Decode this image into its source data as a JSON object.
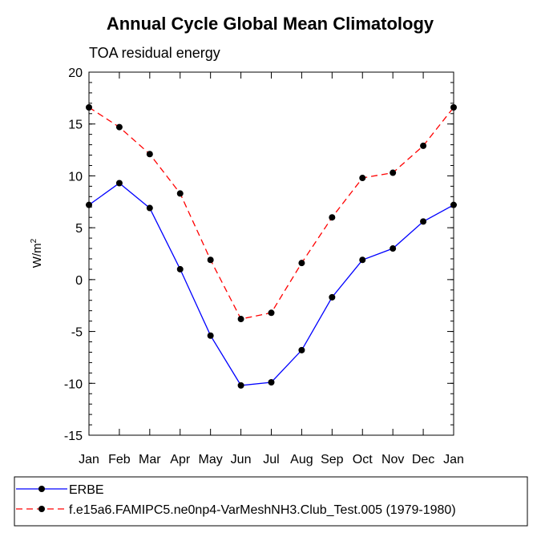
{
  "chart_data": {
    "type": "line",
    "title": "Annual Cycle Global Mean Climatology",
    "subtitle": "TOA residual energy",
    "ylabel": "W/m",
    "ylabel_sup": "2",
    "xlabel": "",
    "categories": [
      "Jan",
      "Feb",
      "Mar",
      "Apr",
      "May",
      "Jun",
      "Jul",
      "Aug",
      "Sep",
      "Oct",
      "Nov",
      "Dec",
      "Jan"
    ],
    "ylim": [
      -15,
      20
    ],
    "yticks": [
      -15,
      -10,
      -5,
      0,
      5,
      10,
      15,
      20
    ],
    "ytick_labels": [
      "-15",
      "-10",
      "-5",
      "0",
      "5",
      "10",
      "15",
      "20"
    ],
    "grid": false,
    "legend_position": "bottom",
    "series": [
      {
        "name": "ERBE",
        "color": "#0000ff",
        "dash": "solid",
        "values": [
          7.2,
          9.3,
          6.9,
          1.0,
          -5.4,
          -10.2,
          -9.9,
          -6.8,
          -1.7,
          1.9,
          3.0,
          5.6,
          7.2
        ]
      },
      {
        "name": "f.e15a6.FAMIPC5.ne0np4-VarMeshNH3.Club_Test.005 (1979-1980)",
        "color": "#ff0000",
        "dash": "dashed",
        "values": [
          16.6,
          14.7,
          12.1,
          8.3,
          1.9,
          -3.8,
          -3.2,
          1.6,
          6.0,
          9.8,
          10.3,
          12.9,
          16.6
        ]
      }
    ]
  }
}
